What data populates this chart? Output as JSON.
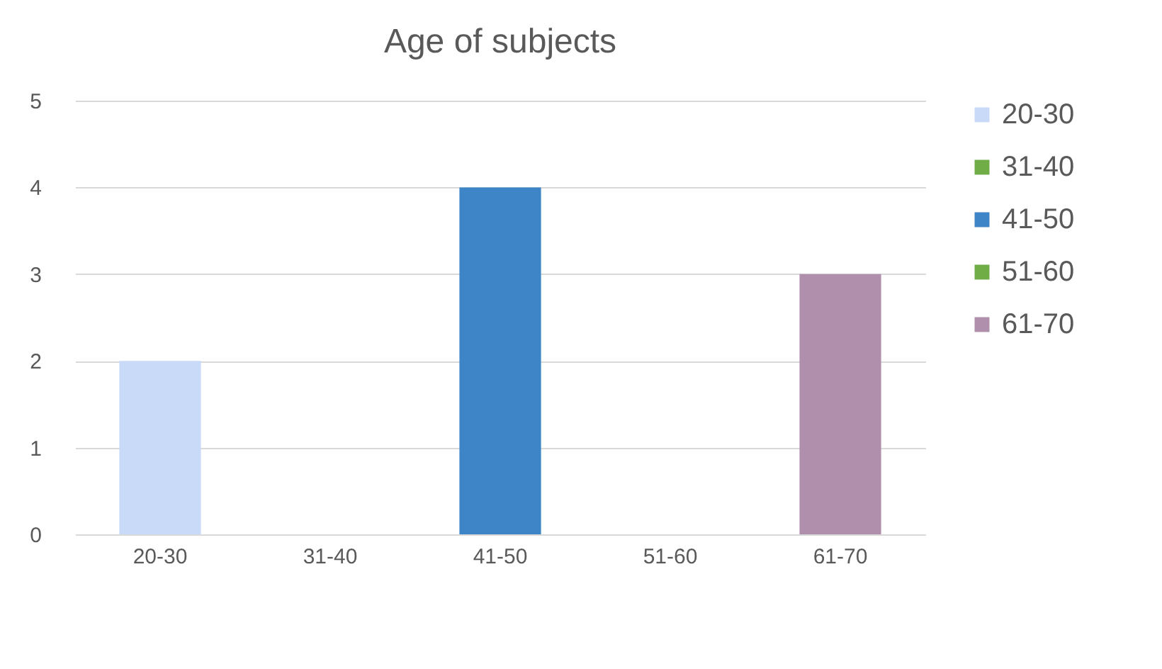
{
  "chart_data": {
    "type": "bar",
    "title": "Age of subjects",
    "categories": [
      "20-30",
      "31-40",
      "41-50",
      "51-60",
      "61-70"
    ],
    "series": [
      {
        "name": "20-30",
        "color": "#c9daf8",
        "values": [
          2,
          null,
          null,
          null,
          null
        ]
      },
      {
        "name": "31-40",
        "color": "#70ad47",
        "values": [
          null,
          0,
          null,
          null,
          null
        ]
      },
      {
        "name": "41-50",
        "color": "#3d85c6",
        "values": [
          null,
          null,
          4,
          null,
          null
        ]
      },
      {
        "name": "51-60",
        "color": "#70ad47",
        "values": [
          null,
          null,
          null,
          0,
          null
        ]
      },
      {
        "name": "61-70",
        "color": "#b08fac",
        "values": [
          null,
          null,
          null,
          null,
          3
        ]
      }
    ],
    "ylim": [
      0,
      5
    ],
    "yticks": [
      0,
      1,
      2,
      3,
      4,
      5
    ],
    "grid": "y",
    "legend": "right"
  }
}
